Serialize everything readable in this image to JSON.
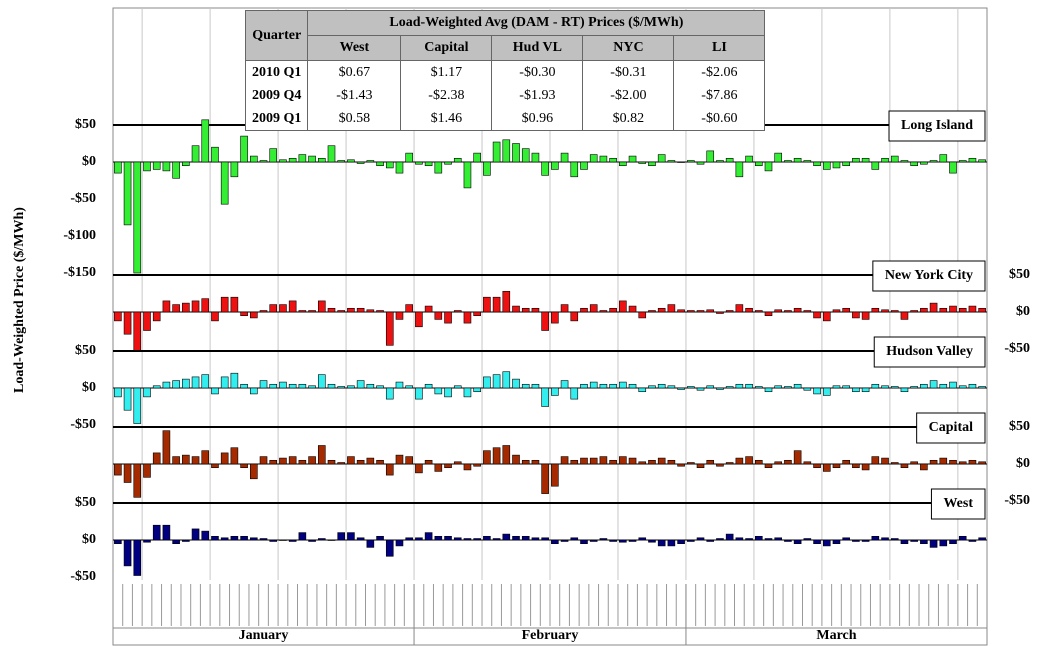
{
  "chart_data": {
    "type": "bar",
    "y_label": "Load-Weighted Price ($/MWh)",
    "months": [
      "January",
      "February",
      "March"
    ],
    "series": [
      {
        "name": "Long Island",
        "color": "#33ee33",
        "axis": "y",
        "ylim": [
          -150,
          50
        ],
        "yticks": [
          {
            "value": 50,
            "label": "$50"
          },
          {
            "value": 0,
            "label": "$0"
          },
          {
            "value": -50,
            "label": "-$50"
          },
          {
            "value": -100,
            "label": "-$100"
          },
          {
            "value": -150,
            "label": "-$150"
          }
        ],
        "values": [
          -15,
          -85,
          -150,
          -12,
          -10,
          -12,
          -22,
          -5,
          22,
          57,
          20,
          -57,
          -20,
          35,
          8,
          2,
          18,
          3,
          5,
          10,
          8,
          5,
          22,
          2,
          3,
          -2,
          2,
          -5,
          -8,
          -15,
          12,
          -3,
          -5,
          -15,
          -3,
          5,
          -35,
          12,
          -18,
          27,
          30,
          25,
          18,
          12,
          -18,
          -10,
          12,
          -20,
          -10,
          10,
          8,
          5,
          -5,
          8,
          -2,
          -5,
          10,
          2,
          0,
          2,
          -3,
          15,
          2,
          5,
          -20,
          8,
          -5,
          -12,
          12,
          2,
          5,
          2,
          -5,
          -10,
          -8,
          -5,
          5,
          5,
          -10,
          5,
          8,
          2,
          -5,
          -3,
          2,
          10,
          -15,
          2,
          5,
          3
        ]
      },
      {
        "name": "New York City",
        "color": "#ee1111",
        "axis": "y2",
        "ylim": [
          -50,
          50
        ],
        "yticks": [
          {
            "value": 50,
            "label": "$50"
          },
          {
            "value": 0,
            "label": "$0"
          },
          {
            "value": -50,
            "label": "-$50"
          }
        ],
        "values": [
          -12,
          -30,
          -52,
          -25,
          -12,
          15,
          10,
          12,
          15,
          18,
          -12,
          20,
          20,
          -5,
          -8,
          2,
          10,
          10,
          15,
          2,
          2,
          15,
          5,
          2,
          5,
          5,
          3,
          2,
          -45,
          -10,
          10,
          -20,
          8,
          -10,
          -15,
          2,
          -15,
          -5,
          20,
          20,
          28,
          8,
          5,
          5,
          -25,
          -15,
          10,
          -12,
          5,
          10,
          2,
          5,
          15,
          8,
          -8,
          2,
          5,
          10,
          3,
          2,
          2,
          3,
          -2,
          2,
          10,
          5,
          2,
          -5,
          3,
          2,
          5,
          2,
          -8,
          -12,
          3,
          5,
          -8,
          -10,
          5,
          3,
          2,
          -10,
          2,
          5,
          12,
          5,
          8,
          5,
          8,
          5
        ]
      },
      {
        "name": "Hudson Valley",
        "color": "#33eeee",
        "axis": "y",
        "ylim": [
          -50,
          50
        ],
        "yticks": [
          {
            "value": 50,
            "label": "$50"
          },
          {
            "value": 0,
            "label": "$0"
          },
          {
            "value": -50,
            "label": "-$50"
          }
        ],
        "values": [
          -12,
          -30,
          -48,
          -12,
          3,
          8,
          10,
          12,
          15,
          18,
          -8,
          15,
          20,
          5,
          -8,
          10,
          5,
          8,
          5,
          5,
          3,
          18,
          5,
          2,
          3,
          10,
          5,
          3,
          -15,
          8,
          3,
          -15,
          5,
          -8,
          -12,
          3,
          -12,
          -5,
          15,
          18,
          22,
          12,
          5,
          5,
          -25,
          -10,
          10,
          -15,
          5,
          8,
          5,
          5,
          8,
          5,
          -5,
          3,
          5,
          3,
          -2,
          2,
          -3,
          3,
          -2,
          2,
          5,
          5,
          2,
          -5,
          3,
          2,
          5,
          -3,
          -8,
          -10,
          3,
          3,
          -5,
          -5,
          5,
          3,
          2,
          -5,
          2,
          5,
          10,
          5,
          8,
          3,
          5,
          2
        ]
      },
      {
        "name": "Capital",
        "color": "#a52a00",
        "axis": "y2",
        "ylim": [
          -50,
          50
        ],
        "yticks": [
          {
            "value": 50,
            "label": "$50"
          },
          {
            "value": 0,
            "label": "$0"
          },
          {
            "value": -50,
            "label": "-$50"
          }
        ],
        "values": [
          -15,
          -25,
          -45,
          -18,
          15,
          45,
          10,
          12,
          10,
          18,
          -5,
          15,
          22,
          -5,
          -20,
          10,
          5,
          8,
          10,
          5,
          10,
          25,
          5,
          2,
          10,
          5,
          8,
          5,
          -15,
          12,
          10,
          -12,
          5,
          -10,
          -5,
          3,
          -8,
          -3,
          18,
          22,
          25,
          12,
          5,
          5,
          -40,
          -30,
          10,
          5,
          8,
          8,
          10,
          5,
          10,
          8,
          3,
          5,
          8,
          5,
          -3,
          2,
          -5,
          5,
          -3,
          2,
          8,
          10,
          5,
          -5,
          3,
          5,
          18,
          3,
          -5,
          -10,
          -5,
          5,
          -5,
          -8,
          10,
          8,
          2,
          -5,
          3,
          -8,
          5,
          8,
          5,
          3,
          5,
          3
        ]
      },
      {
        "name": "West",
        "color": "#000080",
        "axis": "y",
        "ylim": [
          -50,
          50
        ],
        "yticks": [
          {
            "value": 50,
            "label": "$50"
          },
          {
            "value": 0,
            "label": "$0"
          },
          {
            "value": -50,
            "label": "-$50"
          }
        ],
        "values": [
          -5,
          -35,
          -48,
          -3,
          20,
          20,
          -5,
          -2,
          15,
          12,
          5,
          3,
          5,
          5,
          3,
          2,
          -2,
          0,
          -2,
          10,
          -2,
          2,
          0,
          10,
          10,
          3,
          -10,
          5,
          -22,
          -8,
          3,
          3,
          10,
          5,
          5,
          3,
          2,
          2,
          5,
          2,
          8,
          5,
          5,
          3,
          3,
          -5,
          -2,
          3,
          -5,
          -2,
          2,
          -2,
          -3,
          -2,
          3,
          -3,
          -8,
          -8,
          -5,
          -2,
          3,
          -2,
          2,
          8,
          3,
          2,
          5,
          2,
          3,
          -2,
          -5,
          2,
          -5,
          -8,
          -5,
          3,
          -2,
          -2,
          5,
          3,
          2,
          -5,
          -2,
          -5,
          -10,
          -8,
          -5,
          5,
          -2,
          3
        ]
      }
    ]
  },
  "table": {
    "quarter_header": "Quarter",
    "group_header": "Load-Weighted Avg (DAM - RT) Prices ($/MWh)",
    "columns": [
      "West",
      "Capital",
      "Hud VL",
      "NYC",
      "LI"
    ],
    "rows": [
      [
        "2010 Q1",
        "$0.67",
        "$1.17",
        "-$0.30",
        "-$0.31",
        "-$2.06"
      ],
      [
        "2009 Q4",
        "-$1.43",
        "-$2.38",
        "-$1.93",
        "-$2.00",
        "-$7.86"
      ],
      [
        "2009 Q1",
        "$0.58",
        "$1.46",
        "$0.96",
        "$0.82",
        "-$0.60"
      ]
    ]
  }
}
